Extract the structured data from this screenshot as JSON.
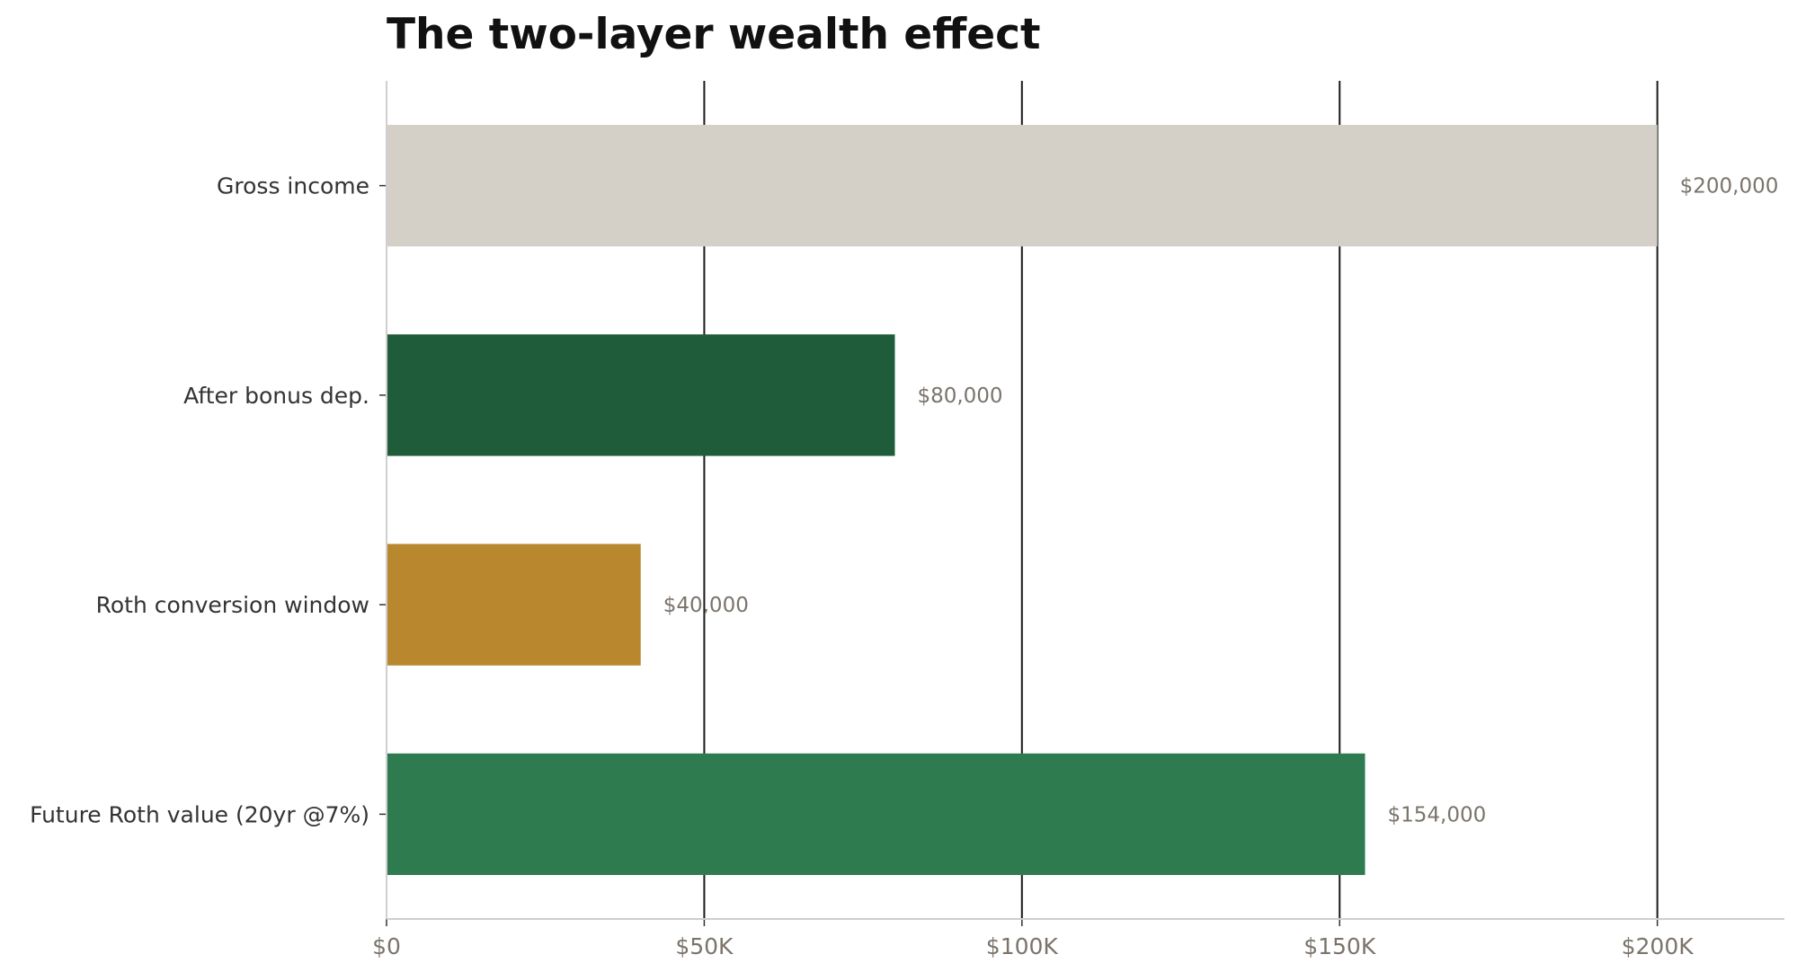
{
  "chart_data": {
    "type": "bar",
    "orientation": "horizontal",
    "title": "The two-layer wealth effect",
    "xlabel": "",
    "ylabel": "",
    "categories": [
      "Gross income",
      "After bonus dep.",
      "Roth conversion window",
      "Future Roth value (20yr @7%)"
    ],
    "values": [
      200000,
      80000,
      40000,
      154000
    ],
    "value_labels": [
      "$200,000",
      "$80,000",
      "$40,000",
      "$154,000"
    ],
    "bar_colors": [
      "#d4d0c8",
      "#1e5c3a",
      "#b8872e",
      "#2e7b50"
    ],
    "xlim": [
      0,
      220000
    ],
    "x_ticks": [
      0,
      50000,
      100000,
      150000,
      200000
    ],
    "x_tick_labels": [
      "$0",
      "$50K",
      "$100K",
      "$150K",
      "$200K"
    ],
    "grid": "vertical lines at x ticks",
    "legend": "none"
  }
}
